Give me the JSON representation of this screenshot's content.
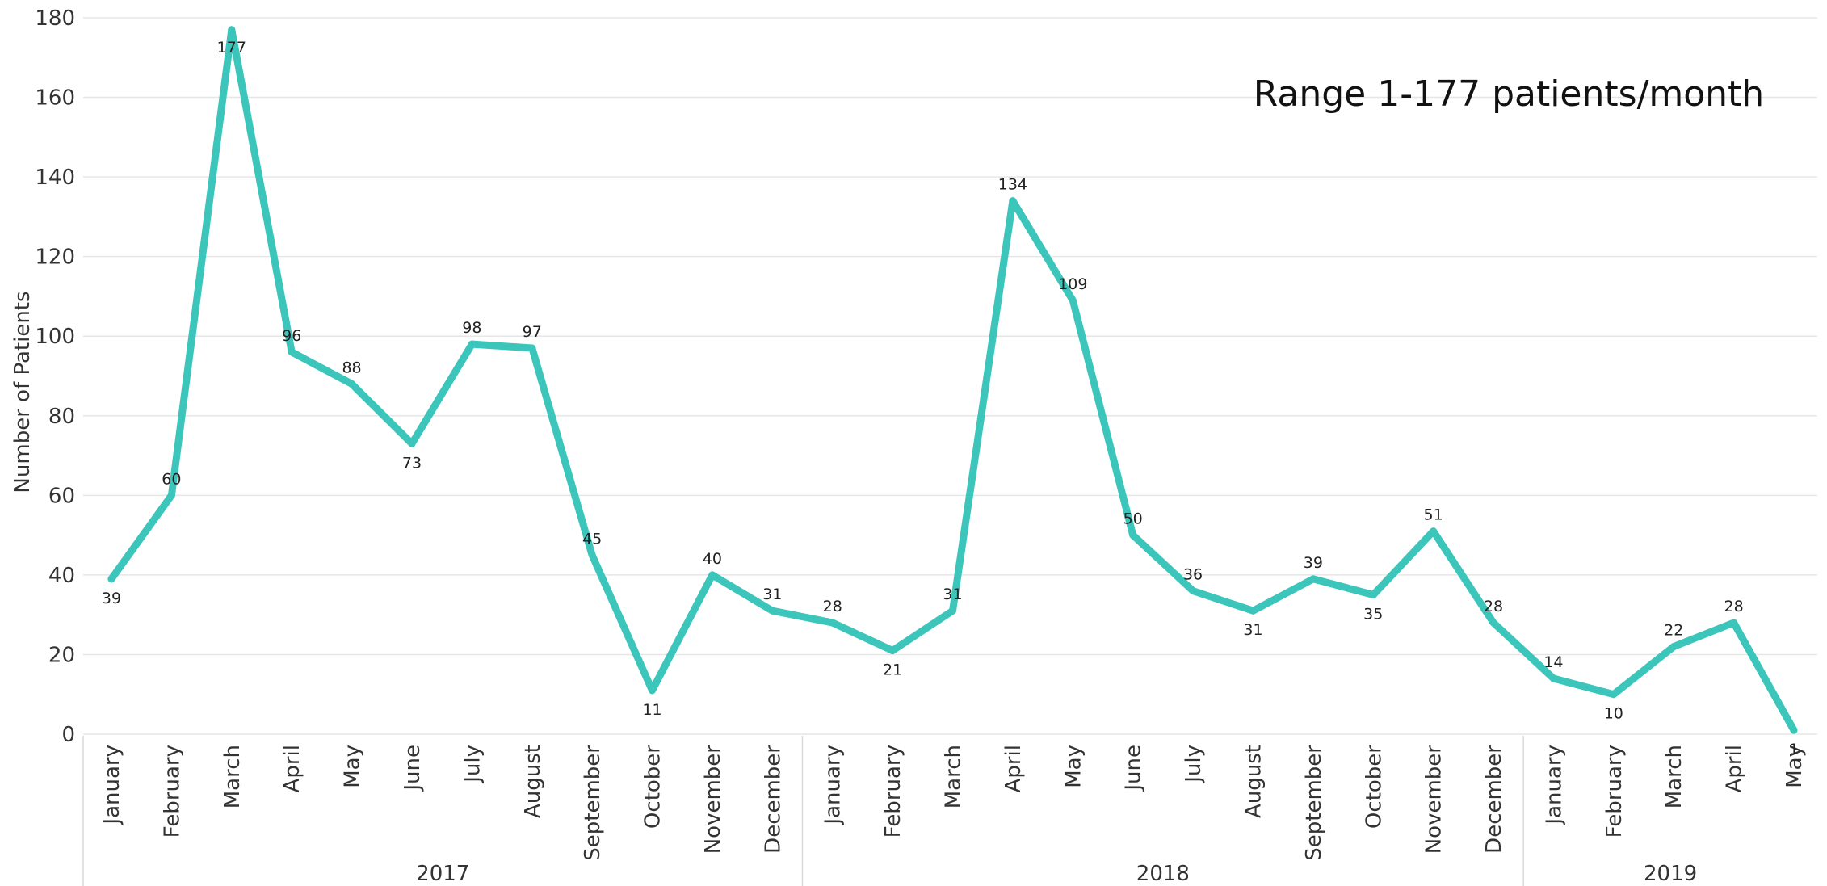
{
  "chart_data": {
    "type": "line",
    "ylabel": "Number of Patients",
    "ylim": [
      0,
      180
    ],
    "yticks": [
      0,
      20,
      40,
      60,
      80,
      100,
      120,
      140,
      160,
      180
    ],
    "grid": true,
    "annotation": "Range 1-177 patients/month",
    "line_color": "#3cc6bb",
    "categories": [
      "January",
      "February",
      "March",
      "April",
      "May",
      "June",
      "July",
      "August",
      "September",
      "October",
      "November",
      "December",
      "January",
      "February",
      "March",
      "April",
      "May",
      "June",
      "July",
      "August",
      "September",
      "October",
      "November",
      "December",
      "January",
      "February",
      "March",
      "April",
      "May"
    ],
    "years": [
      {
        "label": "2017",
        "count": 12
      },
      {
        "label": "2018",
        "count": 12
      },
      {
        "label": "2019",
        "count": 5
      }
    ],
    "series": [
      {
        "values": [
          39,
          60,
          177,
          96,
          88,
          73,
          98,
          97,
          45,
          11,
          40,
          31,
          28,
          21,
          31,
          134,
          109,
          50,
          36,
          31,
          39,
          35,
          51,
          28,
          14,
          10,
          22,
          28,
          1
        ]
      }
    ]
  }
}
